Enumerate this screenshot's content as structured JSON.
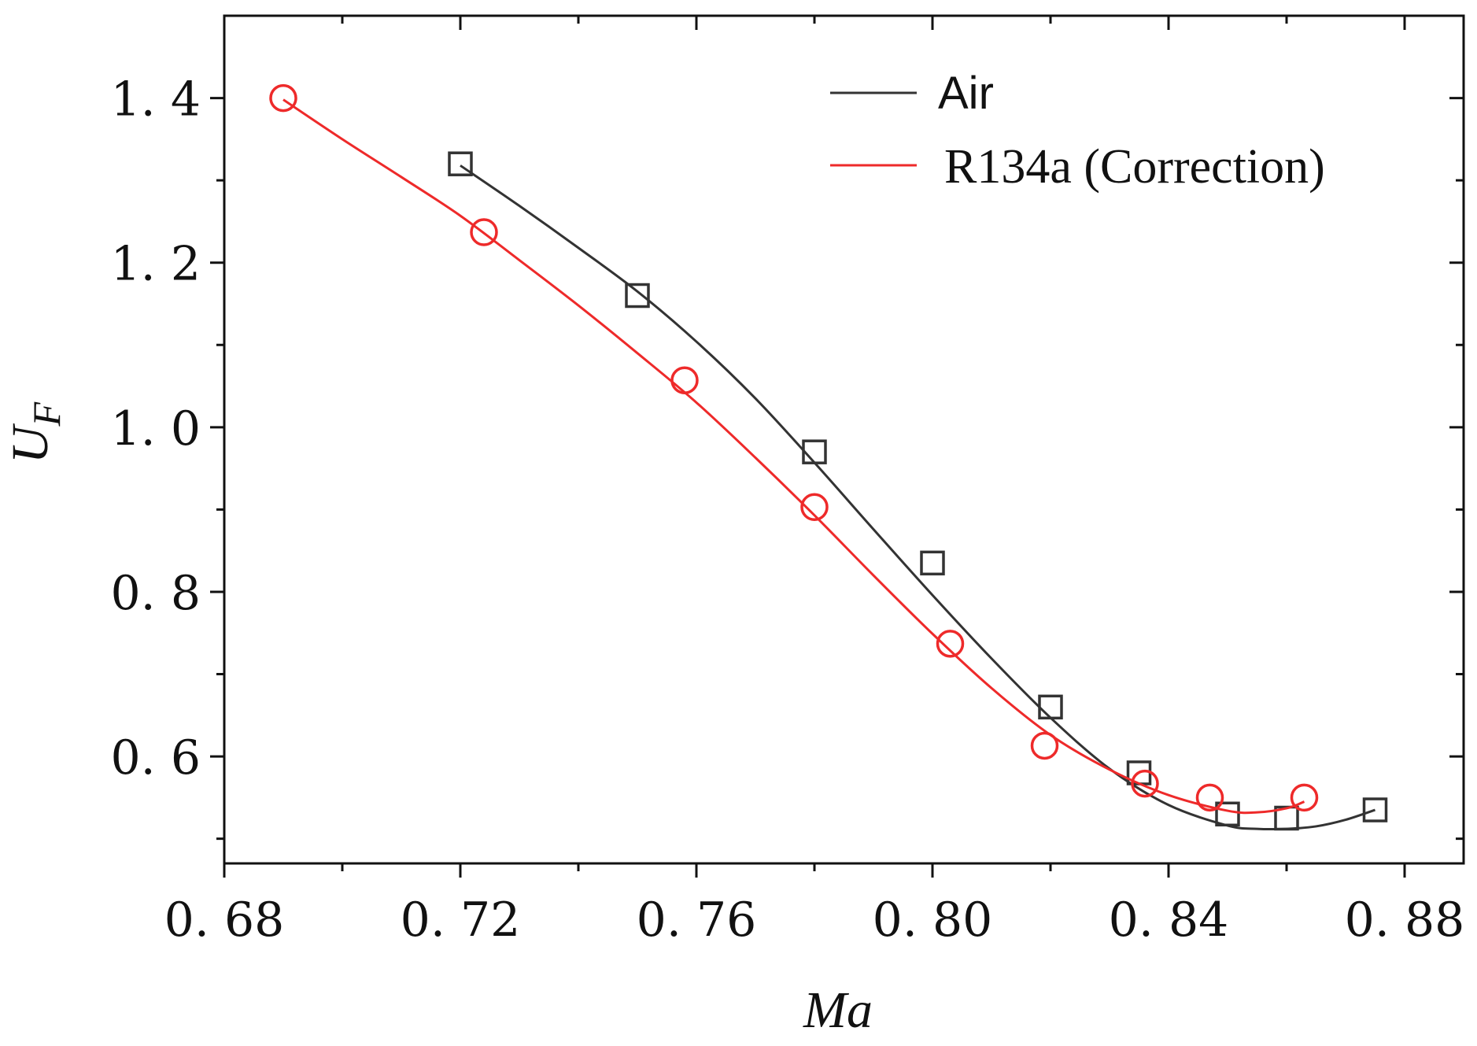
{
  "chart_data": {
    "type": "line",
    "title": "",
    "xlabel": "Ma",
    "ylabel_main": "U",
    "ylabel_sub": "F",
    "xlim": [
      0.68,
      0.89
    ],
    "ylim": [
      0.47,
      1.5
    ],
    "x_ticks": [
      0.68,
      0.72,
      0.76,
      0.8,
      0.84,
      0.88
    ],
    "x_tick_labels": [
      "0. 68",
      "0. 72",
      "0. 76",
      "0. 80",
      "0. 84",
      "0. 88"
    ],
    "y_ticks": [
      0.6,
      0.8,
      1.0,
      1.2,
      1.4
    ],
    "y_tick_labels": [
      "0. 6",
      "0. 8",
      "1. 0",
      "1. 2",
      "1. 4"
    ],
    "x_minor_ticks": [
      0.7,
      0.74,
      0.78,
      0.82,
      0.86
    ],
    "y_minor_ticks": [
      0.5,
      0.7,
      0.9,
      1.1,
      1.3
    ],
    "grid": false,
    "legend_position": "top-right",
    "series": [
      {
        "name": "Air",
        "color": "#333333",
        "marker": "square",
        "x": [
          0.72,
          0.75,
          0.78,
          0.8,
          0.82,
          0.835,
          0.85,
          0.86,
          0.875
        ],
        "y": [
          1.32,
          1.16,
          0.97,
          0.835,
          0.66,
          0.58,
          0.53,
          0.525,
          0.535
        ],
        "fit_x": [
          0.72,
          0.73,
          0.74,
          0.75,
          0.76,
          0.77,
          0.78,
          0.79,
          0.8,
          0.81,
          0.82,
          0.83,
          0.84,
          0.85,
          0.855,
          0.86,
          0.865,
          0.87,
          0.875
        ],
        "fit_y": [
          1.318,
          1.269,
          1.218,
          1.165,
          1.104,
          1.035,
          0.957,
          0.876,
          0.796,
          0.719,
          0.647,
          0.585,
          0.541,
          0.516,
          0.512,
          0.512,
          0.515,
          0.523,
          0.535
        ]
      },
      {
        "name": "R134a (Correction)",
        "color": "#ee2a2a",
        "marker": "circle",
        "x": [
          0.69,
          0.724,
          0.758,
          0.78,
          0.803,
          0.819,
          0.836,
          0.847,
          0.863
        ],
        "y": [
          1.4,
          1.237,
          1.057,
          0.903,
          0.737,
          0.613,
          0.567,
          0.55,
          0.55
        ],
        "fit_x": [
          0.69,
          0.7,
          0.71,
          0.72,
          0.73,
          0.74,
          0.75,
          0.76,
          0.77,
          0.78,
          0.79,
          0.8,
          0.81,
          0.82,
          0.83,
          0.84,
          0.85,
          0.855,
          0.86,
          0.863
        ],
        "fit_y": [
          1.398,
          1.35,
          1.304,
          1.257,
          1.203,
          1.148,
          1.09,
          1.03,
          0.963,
          0.893,
          0.82,
          0.749,
          0.683,
          0.626,
          0.584,
          0.553,
          0.534,
          0.532,
          0.537,
          0.545
        ]
      }
    ]
  }
}
